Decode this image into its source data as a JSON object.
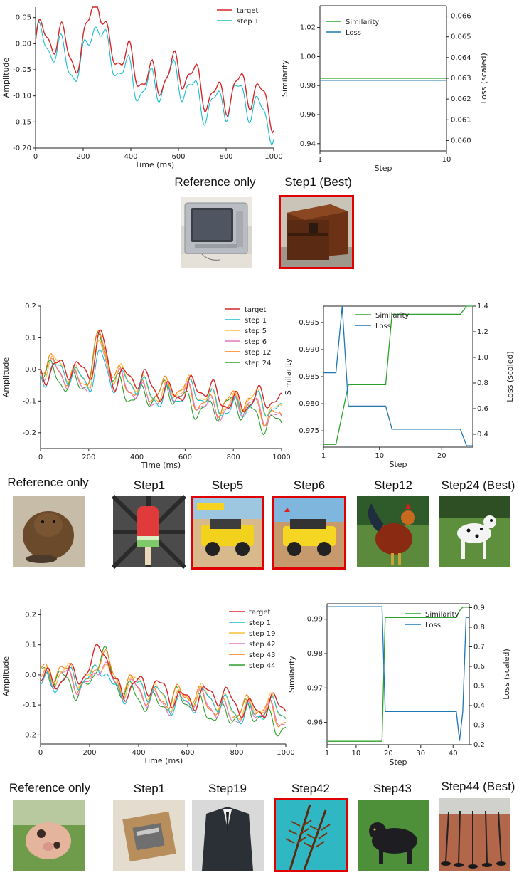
{
  "colors": {
    "target": "#d62728",
    "step_palette": [
      "#17becf",
      "#ffbf3a",
      "#e377c2",
      "#ff7f0e",
      "#2ca02c"
    ],
    "similarity": "#2ca02c",
    "loss": "#1f77b4",
    "best_border": "#e00000"
  },
  "panels": [
    {
      "amplitude_chart": {
        "type": "line",
        "xlabel": "Time (ms)",
        "ylabel": "Amplitude",
        "xlim": [
          0,
          1000
        ],
        "ylim": [
          -0.2,
          0.07
        ],
        "xticks": [
          "0",
          "200",
          "400",
          "600",
          "800",
          "1000"
        ],
        "yticks": [
          "-0.20",
          "-0.15",
          "-0.10",
          "-0.05",
          "0.00",
          "0.05"
        ],
        "legend": [
          "target",
          "step 1"
        ]
      },
      "similarity_chart": {
        "type": "line",
        "xlabel": "Step",
        "ylabel": "Similarity",
        "y2label": "Loss (scaled)",
        "xlim": [
          1,
          10
        ],
        "ylim": [
          0.935,
          1.035
        ],
        "y2lim": [
          0.0595,
          0.0665
        ],
        "xticks": [
          "1",
          "10"
        ],
        "yticks": [
          "0.94",
          "0.96",
          "0.98",
          "1.00",
          "1.02"
        ],
        "y2ticks": [
          "0.060",
          "0.061",
          "0.062",
          "0.063",
          "0.064",
          "0.065",
          "0.066"
        ],
        "similarity": {
          "name": "Similarity",
          "x": [
            1,
            10
          ],
          "y": [
            0.985,
            0.985
          ]
        },
        "loss": {
          "name": "Loss",
          "x": [
            1,
            10
          ],
          "y": [
            0.0629,
            0.0629
          ]
        }
      },
      "captions": [
        "Reference only",
        "Step1 (Best)"
      ]
    },
    {
      "amplitude_chart": {
        "type": "line",
        "xlabel": "Time (ms)",
        "ylabel": "Amplitude",
        "xlim": [
          0,
          1000
        ],
        "ylim": [
          -0.25,
          0.2
        ],
        "xticks": [
          "0",
          "200",
          "400",
          "600",
          "800",
          "1000"
        ],
        "yticks": [
          "-0.2",
          "-0.1",
          "0.0",
          "0.1",
          "0.2"
        ],
        "legend": [
          "target",
          "step 1",
          "step 5",
          "step 6",
          "step 12",
          "step 24"
        ]
      },
      "similarity_chart": {
        "type": "line",
        "xlabel": "Step",
        "ylabel": "Similarity",
        "y2label": "Loss (scaled)",
        "xlim": [
          1,
          24
        ],
        "ylim": [
          0.972,
          0.998
        ],
        "y2lim": [
          0.3,
          1.4
        ],
        "xticks": [
          "1",
          "10",
          "20"
        ],
        "yticks": [
          "0.975",
          "0.980",
          "0.985",
          "0.990",
          "0.995"
        ],
        "y2ticks": [
          "0.4",
          "0.6",
          "0.8",
          "1.0",
          "1.2",
          "1.4"
        ],
        "similarity": {
          "name": "Similarity",
          "x": [
            1,
            3,
            5,
            11,
            12,
            23,
            24,
            25
          ],
          "y": [
            0.9725,
            0.9725,
            0.9835,
            0.9835,
            0.9965,
            0.9965,
            0.998,
            0.998
          ]
        },
        "loss": {
          "name": "Loss",
          "x": [
            1,
            3,
            4,
            5,
            11,
            12,
            23,
            24,
            25
          ],
          "y": [
            0.88,
            0.88,
            1.4,
            0.62,
            0.62,
            0.44,
            0.44,
            0.31,
            0.31
          ]
        }
      },
      "captions": [
        "Reference only",
        "Step1",
        "Step5",
        "Step6",
        "Step12",
        "Step24 (Best)"
      ]
    },
    {
      "amplitude_chart": {
        "type": "line",
        "xlabel": "Time (ms)",
        "ylabel": "Amplitude",
        "xlim": [
          0,
          1000
        ],
        "ylim": [
          -0.23,
          0.22
        ],
        "xticks": [
          "0",
          "200",
          "400",
          "600",
          "800",
          "1000"
        ],
        "yticks": [
          "-0.2",
          "-0.1",
          "0.0",
          "0.1",
          "0.2"
        ],
        "legend": [
          "target",
          "step 1",
          "step 19",
          "step 42",
          "step 43",
          "step 44"
        ]
      },
      "similarity_chart": {
        "type": "line",
        "xlabel": "Step",
        "ylabel": "Similarity",
        "y2label": "Loss (scaled)",
        "xlim": [
          1,
          44
        ],
        "ylim": [
          0.9535,
          0.9945
        ],
        "y2lim": [
          0.2,
          0.92
        ],
        "xticks": [
          "1",
          "10",
          "20",
          "30",
          "40"
        ],
        "yticks": [
          "0.96",
          "0.97",
          "0.98",
          "0.99"
        ],
        "y2ticks": [
          "0.2",
          "0.3",
          "0.4",
          "0.5",
          "0.6",
          "0.7",
          "0.8",
          "0.9"
        ],
        "similarity": {
          "name": "Similarity",
          "x": [
            1,
            18,
            19,
            41,
            42,
            43,
            44,
            45
          ],
          "y": [
            0.9545,
            0.9545,
            0.9905,
            0.9905,
            0.9925,
            0.9935,
            0.9935,
            0.9935
          ]
        },
        "loss": {
          "name": "Loss",
          "x": [
            1,
            18,
            19,
            41,
            42,
            43,
            44,
            45
          ],
          "y": [
            0.905,
            0.905,
            0.37,
            0.37,
            0.22,
            0.37,
            0.85,
            0.85
          ]
        }
      },
      "captions": [
        "Reference only",
        "Step1",
        "Step19",
        "Step42",
        "Step43",
        "Step44 (Best)"
      ]
    }
  ]
}
